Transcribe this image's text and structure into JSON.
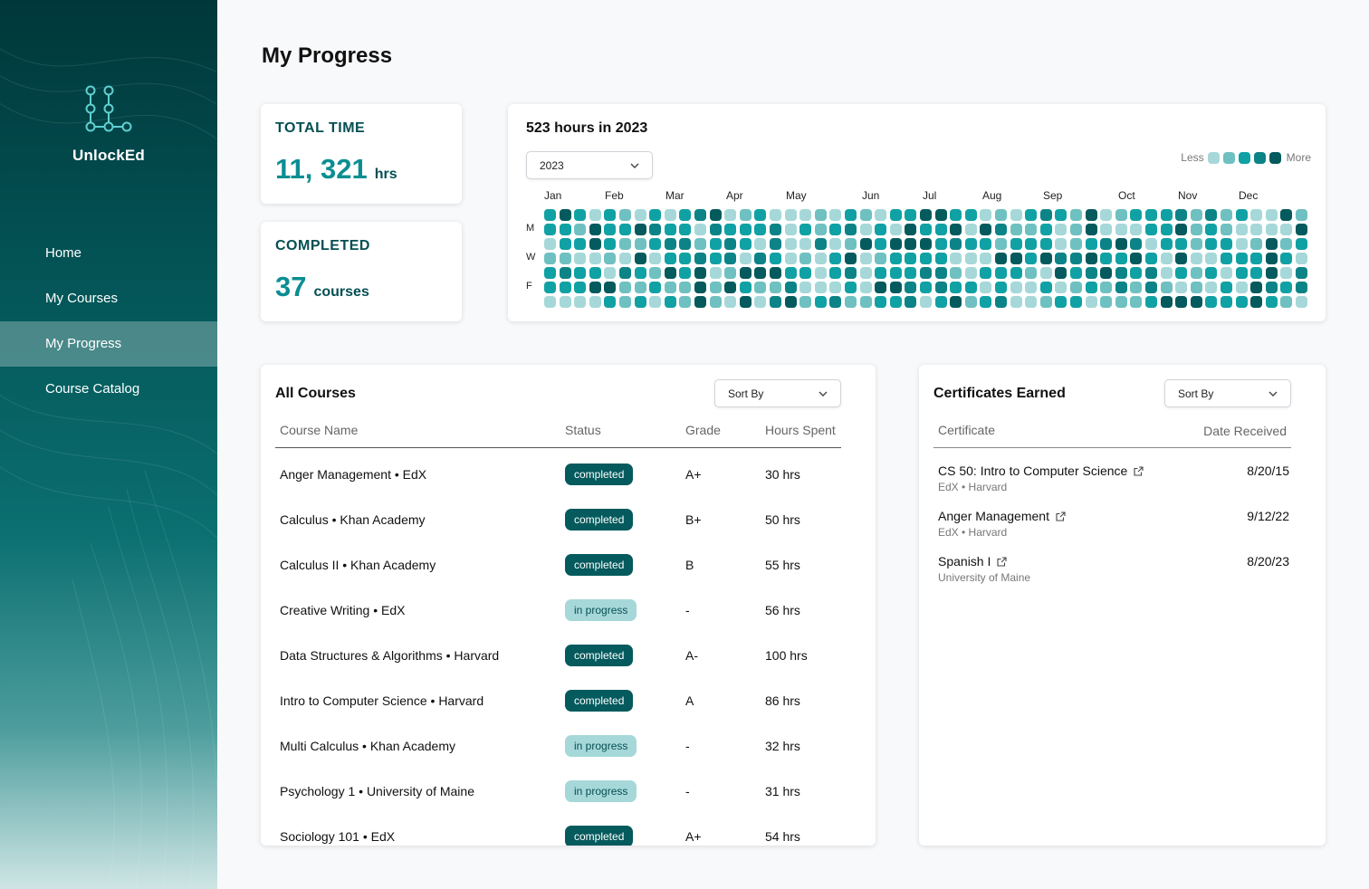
{
  "app": {
    "name": "UnlockEd",
    "logo_icon": "network-nodes-icon"
  },
  "nav": {
    "items": [
      {
        "label": "Home",
        "active": false
      },
      {
        "label": "My Courses",
        "active": false
      },
      {
        "label": "My Progress",
        "active": true
      },
      {
        "label": "Course Catalog",
        "active": false
      }
    ]
  },
  "page": {
    "title": "My Progress"
  },
  "stats": {
    "total_time": {
      "label": "TOTAL TIME",
      "value": "11, 321",
      "unit": "hrs"
    },
    "completed": {
      "label": "COMPLETED",
      "value": "37",
      "unit": "courses"
    }
  },
  "activity": {
    "title": "523 hours in 2023",
    "year_select": "2023",
    "legend_less": "Less",
    "legend_more": "More",
    "legend_colors": [
      "#a6d8d9",
      "#6fc0c1",
      "#10a1a4",
      "#0b8387",
      "#045a5d"
    ],
    "months": [
      "Jan",
      "Feb",
      "Mar",
      "Apr",
      "May",
      "Jun",
      "Jul",
      "Aug",
      "Sep",
      "Oct",
      "Nov",
      "Dec"
    ],
    "day_labels": [
      "M",
      "W",
      "F"
    ],
    "weeks": 51,
    "days_per_week": 7
  },
  "all_courses": {
    "title": "All Courses",
    "sort_label": "Sort By",
    "columns": {
      "name": "Course Name",
      "status": "Status",
      "grade": "Grade",
      "hours": "Hours Spent"
    },
    "rows": [
      {
        "name": "Anger Management • EdX",
        "status": "completed",
        "grade": "A+",
        "hours": "30 hrs"
      },
      {
        "name": "Calculus • Khan Academy",
        "status": "completed",
        "grade": "B+",
        "hours": "50 hrs"
      },
      {
        "name": "Calculus II • Khan Academy",
        "status": "completed",
        "grade": "B",
        "hours": "55 hrs"
      },
      {
        "name": "Creative Writing • EdX",
        "status": "in progress",
        "grade": "-",
        "hours": "56 hrs"
      },
      {
        "name": "Data Structures & Algorithms • Harvard",
        "status": "completed",
        "grade": "A-",
        "hours": "100 hrs"
      },
      {
        "name": "Intro to Computer Science • Harvard",
        "status": "completed",
        "grade": "A",
        "hours": "86 hrs"
      },
      {
        "name": "Multi Calculus •  Khan Academy",
        "status": "in progress",
        "grade": "-",
        "hours": "32 hrs"
      },
      {
        "name": "Psychology 1 • University of Maine",
        "status": "in progress",
        "grade": "-",
        "hours": "31 hrs"
      },
      {
        "name": "Sociology 101 • EdX",
        "status": "completed",
        "grade": "A+",
        "hours": "54 hrs"
      }
    ]
  },
  "certificates": {
    "title": "Certificates Earned",
    "sort_label": "Sort By",
    "columns": {
      "name": "Certificate",
      "date": "Date Received"
    },
    "rows": [
      {
        "name": "CS 50: Intro to Computer Science",
        "provider": "EdX • Harvard",
        "date": "8/20/15"
      },
      {
        "name": "Anger Management",
        "provider": "EdX • Harvard",
        "date": "9/12/22"
      },
      {
        "name": "Spanish I",
        "provider": "University of Maine",
        "date": "8/20/23"
      }
    ]
  }
}
